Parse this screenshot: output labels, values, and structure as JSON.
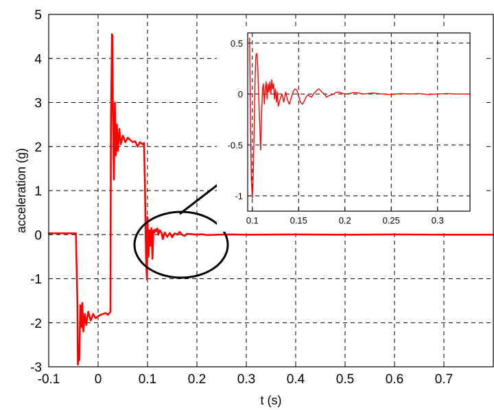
{
  "chart_data": [
    {
      "type": "line",
      "xlabel": "t (s)",
      "ylabel": "acceleration (g)",
      "xlim": [
        -0.1,
        0.8
      ],
      "ylim": [
        -3,
        5
      ],
      "xticks": [
        "-0.1",
        "0",
        "0.1",
        "0.2",
        "0.3",
        "0.4",
        "0.5",
        "0.6",
        "0.7"
      ],
      "yticks": [
        "-3",
        "-2",
        "-1",
        "0",
        "1",
        "2",
        "3",
        "4",
        "5"
      ],
      "grid": true,
      "series_color": "#ff0000",
      "series": [
        {
          "x": [
            -0.1,
            -0.045,
            -0.042,
            -0.041,
            -0.0395,
            -0.038,
            -0.036,
            -0.034,
            -0.032,
            -0.03,
            -0.027,
            -0.024,
            -0.02,
            -0.015,
            -0.01,
            -0.005,
            0.0,
            0.005,
            0.01,
            0.015,
            0.02,
            0.025,
            0.026,
            0.028,
            0.029,
            0.03,
            0.032,
            0.034,
            0.036,
            0.038,
            0.04,
            0.043,
            0.046,
            0.05,
            0.055,
            0.06,
            0.065,
            0.07,
            0.075,
            0.08,
            0.085,
            0.09,
            0.093,
            0.095,
            0.097,
            0.098,
            0.099,
            0.1,
            0.102,
            0.104,
            0.106,
            0.108,
            0.11,
            0.112,
            0.114,
            0.116,
            0.118,
            0.12,
            0.122,
            0.125,
            0.128,
            0.131,
            0.135,
            0.14,
            0.145,
            0.15,
            0.155,
            0.16,
            0.165,
            0.17,
            0.175,
            0.18,
            0.19,
            0.2,
            0.21,
            0.22,
            0.24,
            0.27,
            0.3,
            0.4,
            0.5,
            0.6,
            0.7,
            0.8
          ],
          "y": [
            0.03,
            0.03,
            -1.5,
            -2.95,
            -2.7,
            -2.85,
            -1.6,
            -2.1,
            -1.55,
            -2.2,
            -1.8,
            -2.05,
            -1.75,
            -1.95,
            -1.8,
            -1.9,
            -1.85,
            -1.82,
            -1.8,
            -1.78,
            -1.82,
            -1.75,
            2.5,
            4.55,
            4.5,
            2.8,
            1.25,
            3.0,
            1.8,
            2.5,
            1.9,
            2.4,
            2.05,
            2.25,
            2.1,
            2.2,
            2.15,
            2.1,
            2.12,
            2.0,
            2.1,
            2.05,
            2.08,
            1.0,
            -0.5,
            -0.8,
            -1.02,
            0.4,
            -0.5,
            0.1,
            -0.25,
            0.15,
            -0.55,
            0.1,
            0.05,
            0.12,
            0.08,
            0.14,
            0.0,
            0.1,
            0.05,
            -0.1,
            0.05,
            -0.05,
            0.04,
            -0.06,
            0.03,
            0.0,
            0.06,
            0.0,
            -0.03,
            0.02,
            0.01,
            0.0,
            0.01,
            -0.01,
            0.0,
            0.005,
            0.0,
            0.005,
            0.0,
            0.005,
            0.0,
            0.0
          ]
        }
      ]
    },
    {
      "type": "line",
      "xlim": [
        0.095,
        0.335
      ],
      "ylim": [
        -1.15,
        0.6
      ],
      "xticks": [
        "0.1",
        "0.15",
        "0.2",
        "0.25",
        "0.3"
      ],
      "yticks": [
        "-1",
        "-0.5",
        "0",
        "0.5"
      ],
      "grid": true,
      "series_color": "#ff0000",
      "series": [
        {
          "x": [
            0.097,
            0.098,
            0.099,
            0.1,
            0.101,
            0.102,
            0.103,
            0.1035,
            0.104,
            0.105,
            0.106,
            0.107,
            0.108,
            0.109,
            0.11,
            0.111,
            0.112,
            0.113,
            0.114,
            0.115,
            0.116,
            0.117,
            0.118,
            0.119,
            0.12,
            0.121,
            0.122,
            0.123,
            0.124,
            0.125,
            0.126,
            0.127,
            0.128,
            0.13,
            0.132,
            0.134,
            0.136,
            0.138,
            0.14,
            0.142,
            0.144,
            0.146,
            0.148,
            0.15,
            0.152,
            0.154,
            0.156,
            0.158,
            0.16,
            0.162,
            0.164,
            0.166,
            0.168,
            0.17,
            0.172,
            0.175,
            0.178,
            0.18,
            0.182,
            0.185,
            0.188,
            0.19,
            0.193,
            0.196,
            0.2,
            0.205,
            0.21,
            0.215,
            0.22,
            0.23,
            0.24,
            0.25,
            0.26,
            0.27,
            0.28,
            0.29,
            0.3,
            0.31,
            0.32,
            0.335
          ],
          "y": [
            0.55,
            -0.3,
            -0.85,
            -1.02,
            -0.8,
            -0.35,
            0.15,
            0.3,
            0.38,
            0.4,
            0.25,
            -0.05,
            -0.3,
            -0.55,
            -0.2,
            0.05,
            0.1,
            -0.1,
            0.05,
            0.12,
            -0.05,
            0.1,
            0.02,
            0.12,
            0.0,
            0.14,
            0.05,
            0.1,
            -0.05,
            0.05,
            -0.08,
            0.02,
            -0.12,
            -0.05,
            0.0,
            -0.08,
            0.02,
            -0.06,
            -0.1,
            -0.04,
            0.02,
            0.05,
            0.04,
            -0.02,
            -0.08,
            -0.1,
            -0.07,
            -0.03,
            -0.01,
            -0.02,
            -0.03,
            0.0,
            0.02,
            0.04,
            0.05,
            0.02,
            0.0,
            -0.03,
            -0.02,
            -0.01,
            0.0,
            0.015,
            0.02,
            0.01,
            0.0,
            0.005,
            0.015,
            0.01,
            0.0,
            0.01,
            0.0,
            -0.005,
            0.005,
            0.0,
            0.005,
            -0.005,
            0.0,
            0.005,
            0.0,
            0.0
          ]
        }
      ]
    }
  ]
}
